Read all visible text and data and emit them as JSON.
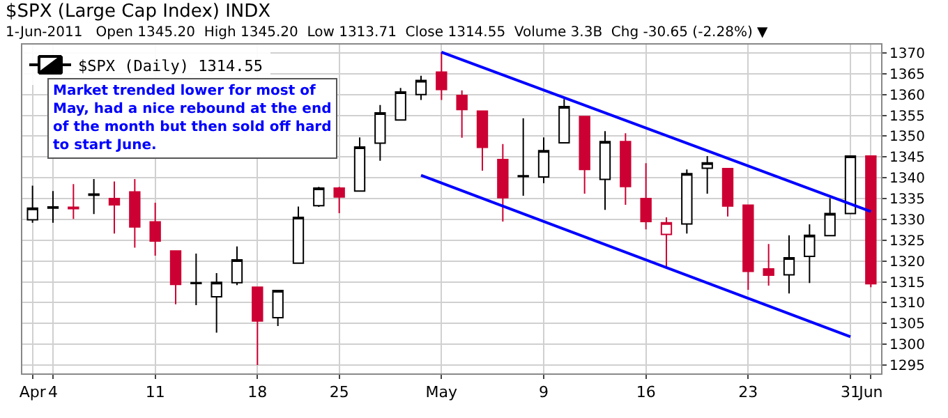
{
  "chart_data": {
    "type": "candlestick",
    "title": "$SPX (Large Cap Index) INDX",
    "subtitle": "1-Jun-2011   Open 1345.20  High 1345.20  Low 1313.71  Close 1314.55  Volume 3.3B  Chg -30.65 (-2.28%) ▼",
    "categories": [
      "Apr",
      "4",
      null,
      null,
      null,
      null,
      "11",
      null,
      null,
      null,
      null,
      "18",
      null,
      null,
      null,
      "25",
      null,
      null,
      null,
      null,
      "May",
      null,
      null,
      null,
      null,
      "9",
      null,
      null,
      null,
      null,
      "16",
      null,
      null,
      null,
      null,
      "23",
      null,
      null,
      null,
      null,
      "31",
      "Jun"
    ],
    "series": [
      {
        "name": "$SPX (Daily) 1314.55",
        "colors": [
          "#000000",
          "#000000",
          "#cc0033",
          "#000000",
          "#cc0033",
          "#cc0033",
          "#cc0033",
          "#cc0033",
          "#000000",
          "#000000",
          "#000000",
          "#cc0033",
          "#000000",
          "#000000",
          "#000000",
          "#cc0033",
          "#000000",
          "#000000",
          "#000000",
          "#000000",
          "#cc0033",
          "#cc0033",
          "#cc0033",
          "#cc0033",
          "#000000",
          "#000000",
          "#000000",
          "#cc0033",
          "#000000",
          "#cc0033",
          "#cc0033",
          "#cc0033",
          "#000000",
          "#000000",
          "#cc0033",
          "#cc0033",
          "#cc0033",
          "#000000",
          "#000000",
          "#000000",
          "#000000",
          "#cc0033"
        ],
        "ohlc": [
          [
            1329.9,
            1338.1,
            1329.2,
            1332.7
          ],
          [
            1332.7,
            1336.8,
            1329.2,
            1333.0
          ],
          [
            1332.9,
            1338.5,
            1330.1,
            1332.6
          ],
          [
            1335.8,
            1339.7,
            1331.3,
            1336.1
          ],
          [
            1335.0,
            1339.1,
            1326.6,
            1333.5
          ],
          [
            1336.6,
            1339.7,
            1323.2,
            1328.2
          ],
          [
            1329.4,
            1334.0,
            1321.3,
            1324.8
          ],
          [
            1322.4,
            1322.4,
            1309.6,
            1314.4
          ],
          [
            1314.6,
            1321.8,
            1309.4,
            1314.8
          ],
          [
            1311.4,
            1317.1,
            1302.8,
            1314.9
          ],
          [
            1314.8,
            1323.5,
            1314.2,
            1320.3
          ],
          [
            1313.7,
            1313.7,
            1295.0,
            1305.6
          ],
          [
            1306.4,
            1312.9,
            1304.4,
            1312.9
          ],
          [
            1319.5,
            1333.1,
            1319.5,
            1330.5
          ],
          [
            1333.3,
            1337.8,
            1333.0,
            1337.5
          ],
          [
            1337.5,
            1337.8,
            1331.5,
            1335.4
          ],
          [
            1336.8,
            1349.7,
            1336.8,
            1347.4
          ],
          [
            1348.3,
            1357.5,
            1344.1,
            1355.6
          ],
          [
            1353.9,
            1361.6,
            1353.7,
            1360.6
          ],
          [
            1360.0,
            1364.5,
            1358.7,
            1363.4
          ],
          [
            1365.4,
            1370.2,
            1358.7,
            1361.2
          ],
          [
            1359.8,
            1361.0,
            1349.6,
            1356.4
          ],
          [
            1356.0,
            1356.0,
            1341.7,
            1347.3
          ],
          [
            1344.4,
            1348.1,
            1329.5,
            1335.2
          ],
          [
            1340.3,
            1354.3,
            1335.7,
            1340.5
          ],
          [
            1340.2,
            1349.7,
            1338.7,
            1346.5
          ],
          [
            1348.4,
            1358.9,
            1348.4,
            1357.1
          ],
          [
            1354.7,
            1354.7,
            1336.2,
            1342.0
          ],
          [
            1339.6,
            1351.2,
            1332.3,
            1348.7
          ],
          [
            1348.7,
            1350.7,
            1333.5,
            1337.9
          ],
          [
            1335.0,
            1343.5,
            1327.6,
            1329.5
          ],
          [
            1326.4,
            1330.5,
            1318.6,
            1329.2
          ],
          [
            1328.9,
            1342.0,
            1326.6,
            1341.0
          ],
          [
            1342.3,
            1345.2,
            1336.2,
            1343.6
          ],
          [
            1342.2,
            1342.2,
            1330.7,
            1333.2
          ],
          [
            1333.4,
            1333.4,
            1313.1,
            1317.5
          ],
          [
            1318.1,
            1324.1,
            1314.1,
            1316.6
          ],
          [
            1316.7,
            1326.2,
            1312.2,
            1320.8
          ],
          [
            1321.1,
            1328.8,
            1314.7,
            1326.2
          ],
          [
            1326.1,
            1335.1,
            1326.1,
            1331.4
          ],
          [
            1331.4,
            1345.2,
            1331.4,
            1345.2
          ],
          [
            1345.2,
            1345.2,
            1313.71,
            1314.55
          ]
        ]
      },
      {
        "type": "line",
        "color": "#0000ff",
        "values": [
          null,
          null,
          null,
          null,
          null,
          null,
          null,
          null,
          null,
          null,
          null,
          null,
          null,
          null,
          null,
          null,
          null,
          null,
          null,
          null,
          1370.2,
          null,
          null,
          null,
          null,
          null,
          null,
          null,
          null,
          null,
          null,
          null,
          null,
          null,
          null,
          null,
          null,
          null,
          null,
          null,
          null,
          1331.9
        ]
      },
      {
        "type": "line",
        "color": "#0000ff",
        "values": [
          null,
          null,
          null,
          null,
          null,
          null,
          null,
          null,
          null,
          null,
          null,
          null,
          null,
          null,
          null,
          null,
          null,
          null,
          null,
          1340.6,
          null,
          null,
          null,
          null,
          null,
          null,
          null,
          null,
          null,
          null,
          null,
          null,
          null,
          null,
          null,
          null,
          null,
          null,
          null,
          null,
          1301.8,
          null
        ]
      }
    ],
    "ylim": [
      1293,
      1372
    ],
    "yticks": [
      1295,
      1300,
      1305,
      1310,
      1315,
      1320,
      1325,
      1330,
      1335,
      1340,
      1345,
      1350,
      1355,
      1360,
      1365,
      1370
    ],
    "annotations": [
      "Market trended lower for most of\nMay, had a nice rebound at the end\nof the month but then sold off hard\nto start June."
    ],
    "grid": true,
    "legend": "top left"
  }
}
